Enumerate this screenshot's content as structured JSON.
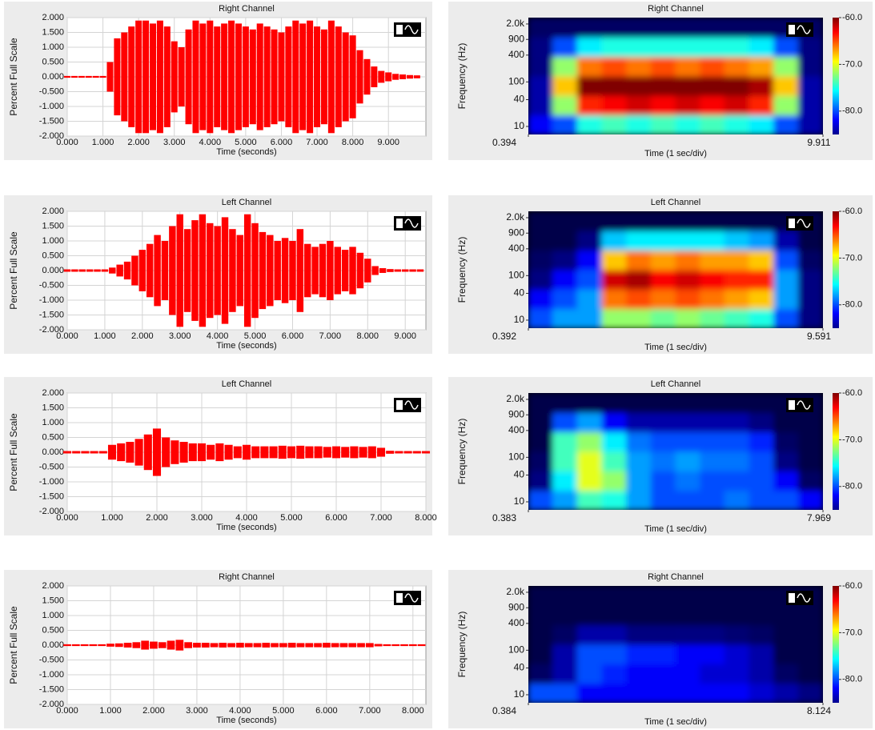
{
  "chart_data": [
    {
      "type": "waveform",
      "title": "Right Channel",
      "ylabel": "Percent Full Scale",
      "xlabel": "Time (seconds)",
      "color": "#ff0000",
      "grid": true,
      "xlim": [
        0,
        10.05
      ],
      "ylim": [
        -2,
        2
      ],
      "xticks": [
        {
          "value": 0,
          "label": "0.000"
        },
        {
          "value": 1,
          "label": "1.000"
        },
        {
          "value": 2,
          "label": "2.000"
        },
        {
          "value": 3,
          "label": "3.000"
        },
        {
          "value": 4,
          "label": "4.000"
        },
        {
          "value": 5,
          "label": "5.000"
        },
        {
          "value": 6,
          "label": "6.000"
        },
        {
          "value": 7,
          "label": "7.000"
        },
        {
          "value": 8,
          "label": "8.000"
        },
        {
          "value": 9,
          "label": "9.000"
        }
      ],
      "yticks": [
        {
          "value": -2,
          "label": "-2.000"
        },
        {
          "value": -1.5,
          "label": "-1.500"
        },
        {
          "value": -1,
          "label": "-1.000"
        },
        {
          "value": -0.5,
          "label": "-0.500"
        },
        {
          "value": 0,
          "label": "0.000"
        },
        {
          "value": 0.5,
          "label": "0.500"
        },
        {
          "value": 1,
          "label": "1.000"
        },
        {
          "value": 1.5,
          "label": "1.500"
        },
        {
          "value": 2,
          "label": "2.000"
        }
      ],
      "x": [
        0,
        0.2,
        0.4,
        0.6,
        0.8,
        1.0,
        1.2,
        1.4,
        1.6,
        1.8,
        2.0,
        2.2,
        2.4,
        2.6,
        2.8,
        3.0,
        3.2,
        3.4,
        3.6,
        3.8,
        4.0,
        4.2,
        4.4,
        4.6,
        4.8,
        5.0,
        5.2,
        5.4,
        5.6,
        5.8,
        6.0,
        6.2,
        6.4,
        6.6,
        6.8,
        7.0,
        7.2,
        7.4,
        7.6,
        7.8,
        8.0,
        8.2,
        8.4,
        8.6,
        8.8,
        9.0,
        9.2,
        9.4,
        9.6,
        9.8
      ],
      "values": [
        0.03,
        0.03,
        0.03,
        0.03,
        0.03,
        0.03,
        0.5,
        1.3,
        1.5,
        1.7,
        1.9,
        1.9,
        1.8,
        1.9,
        1.7,
        1.2,
        1.0,
        1.6,
        1.9,
        1.8,
        1.9,
        1.7,
        1.8,
        1.9,
        1.8,
        1.7,
        1.6,
        1.8,
        1.7,
        1.6,
        1.5,
        1.7,
        1.9,
        1.8,
        1.9,
        1.7,
        1.6,
        1.9,
        1.7,
        1.5,
        1.4,
        0.9,
        0.6,
        0.35,
        0.2,
        0.15,
        0.1,
        0.08,
        0.06,
        0.05
      ]
    },
    {
      "type": "spectrogram",
      "title": "Right Channel",
      "ylabel": "Frequency (Hz)",
      "xlabel": "Time (1 sec/div)",
      "colormap": "jet",
      "log_y": true,
      "xlim": [
        0.394,
        9.911
      ],
      "xticks": [
        0.394,
        9.911
      ],
      "ylim": [
        6.6,
        2780
      ],
      "yticks": [
        10,
        40,
        100,
        400,
        900,
        {
          "value": 2000,
          "label": "2.0k"
        }
      ],
      "zlim": [
        -85,
        -60
      ],
      "zticks": [
        {
          "value": -60,
          "label": "-60.0"
        },
        {
          "value": -70,
          "label": "-70.0"
        },
        {
          "value": -80,
          "label": "-80.0"
        }
      ],
      "values": [
        [
          -82,
          -80,
          -75,
          -74,
          -75,
          -74,
          -75,
          -74,
          -75,
          -76,
          -80,
          -84
        ],
        [
          -84,
          -72,
          -64,
          -63,
          -62,
          -63,
          -62,
          -63,
          -62,
          -64,
          -72,
          -84
        ],
        [
          -84,
          -68,
          -60,
          -60,
          -60,
          -60,
          -60,
          -60,
          -60,
          -61,
          -68,
          -84
        ],
        [
          -85,
          -72,
          -66,
          -65,
          -66,
          -65,
          -66,
          -65,
          -66,
          -67,
          -72,
          -85
        ],
        [
          -86,
          -80,
          -76,
          -75,
          -75,
          -75,
          -75,
          -75,
          -75,
          -76,
          -80,
          -86
        ],
        [
          -88,
          -88,
          -88,
          -88,
          -88,
          -88,
          -88,
          -88,
          -88,
          -88,
          -88,
          -88
        ]
      ]
    },
    {
      "type": "waveform",
      "title": "Left Channel",
      "ylabel": "Percent Full Scale",
      "xlabel": "Time (seconds)",
      "color": "#ff0000",
      "grid": true,
      "xlim": [
        0,
        9.55
      ],
      "ylim": [
        -2,
        2
      ],
      "xticks": [
        {
          "value": 0,
          "label": "0.000"
        },
        {
          "value": 1,
          "label": "1.000"
        },
        {
          "value": 2,
          "label": "2.000"
        },
        {
          "value": 3,
          "label": "3.000"
        },
        {
          "value": 4,
          "label": "4.000"
        },
        {
          "value": 5,
          "label": "5.000"
        },
        {
          "value": 6,
          "label": "6.000"
        },
        {
          "value": 7,
          "label": "7.000"
        },
        {
          "value": 8,
          "label": "8.000"
        },
        {
          "value": 9,
          "label": "9.000"
        }
      ],
      "yticks": [
        {
          "value": -2,
          "label": "-2.000"
        },
        {
          "value": -1.5,
          "label": "-1.500"
        },
        {
          "value": -1,
          "label": "-1.000"
        },
        {
          "value": -0.5,
          "label": "-0.500"
        },
        {
          "value": 0,
          "label": "0.000"
        },
        {
          "value": 0.5,
          "label": "0.500"
        },
        {
          "value": 1,
          "label": "1.000"
        },
        {
          "value": 1.5,
          "label": "1.500"
        },
        {
          "value": 2,
          "label": "2.000"
        }
      ],
      "x": [
        0,
        0.2,
        0.4,
        0.6,
        0.8,
        1.0,
        1.2,
        1.4,
        1.6,
        1.8,
        2.0,
        2.2,
        2.4,
        2.6,
        2.8,
        3.0,
        3.2,
        3.4,
        3.6,
        3.8,
        4.0,
        4.2,
        4.4,
        4.6,
        4.8,
        5.0,
        5.2,
        5.4,
        5.6,
        5.8,
        6.0,
        6.2,
        6.4,
        6.6,
        6.8,
        7.0,
        7.2,
        7.4,
        7.6,
        7.8,
        8.0,
        8.2,
        8.4,
        8.6,
        8.8,
        9.0,
        9.2,
        9.4
      ],
      "values": [
        0.04,
        0.04,
        0.04,
        0.04,
        0.04,
        0.04,
        0.1,
        0.2,
        0.3,
        0.5,
        0.7,
        0.9,
        1.2,
        1.0,
        1.5,
        1.9,
        1.4,
        1.7,
        1.9,
        1.6,
        1.5,
        1.8,
        1.4,
        1.2,
        1.9,
        1.6,
        1.3,
        1.2,
        1.0,
        1.1,
        1.0,
        1.4,
        0.9,
        0.8,
        0.9,
        1.0,
        0.8,
        0.7,
        0.8,
        0.6,
        0.4,
        0.15,
        0.08,
        0.05,
        0.04,
        0.04,
        0.04,
        0.04
      ]
    },
    {
      "type": "spectrogram",
      "title": "Left Channel",
      "ylabel": "Frequency (Hz)",
      "xlabel": "Time (1 sec/div)",
      "colormap": "jet",
      "log_y": true,
      "xlim": [
        0.392,
        9.591
      ],
      "xticks": [
        0.392,
        9.591
      ],
      "ylim": [
        6.6,
        2780
      ],
      "yticks": [
        10,
        40,
        100,
        400,
        900,
        {
          "value": 2000,
          "label": "2.0k"
        }
      ],
      "zlim": [
        -85,
        -60
      ],
      "zticks": [
        {
          "value": -60,
          "label": "-60.0"
        },
        {
          "value": -70,
          "label": "-70.0"
        },
        {
          "value": -80,
          "label": "-80.0"
        }
      ],
      "values": [
        [
          -80,
          -78,
          -78,
          -72,
          -72,
          -73,
          -72,
          -73,
          -74,
          -75,
          -80,
          -86
        ],
        [
          -82,
          -80,
          -78,
          -66,
          -65,
          -66,
          -65,
          -66,
          -67,
          -68,
          -78,
          -86
        ],
        [
          -86,
          -82,
          -80,
          -62,
          -61,
          -63,
          -62,
          -63,
          -64,
          -64,
          -78,
          -86
        ],
        [
          -88,
          -86,
          -82,
          -68,
          -66,
          -67,
          -66,
          -67,
          -67,
          -68,
          -80,
          -88
        ],
        [
          -90,
          -90,
          -86,
          -77,
          -76,
          -76,
          -76,
          -76,
          -77,
          -78,
          -84,
          -90
        ],
        [
          -90,
          -90,
          -90,
          -90,
          -90,
          -90,
          -90,
          -90,
          -90,
          -90,
          -90,
          -90
        ]
      ]
    },
    {
      "type": "waveform",
      "title": "Left Channel",
      "ylabel": "Percent Full Scale",
      "xlabel": "Time (seconds)",
      "color": "#ff0000",
      "grid": true,
      "xlim": [
        0,
        8
      ],
      "ylim": [
        -2,
        2
      ],
      "xticks": [
        {
          "value": 0,
          "label": "0.000"
        },
        {
          "value": 1,
          "label": "1.000"
        },
        {
          "value": 2,
          "label": "2.000"
        },
        {
          "value": 3,
          "label": "3.000"
        },
        {
          "value": 4,
          "label": "4.000"
        },
        {
          "value": 5,
          "label": "5.000"
        },
        {
          "value": 6,
          "label": "6.000"
        },
        {
          "value": 7,
          "label": "7.000"
        },
        {
          "value": 8,
          "label": "8.000"
        }
      ],
      "yticks": [
        {
          "value": -2,
          "label": "-2.000"
        },
        {
          "value": -1.5,
          "label": "-1.500"
        },
        {
          "value": -1,
          "label": "-1.000"
        },
        {
          "value": -0.5,
          "label": "-0.500"
        },
        {
          "value": 0,
          "label": "0.000"
        },
        {
          "value": 0.5,
          "label": "0.500"
        },
        {
          "value": 1,
          "label": "1.000"
        },
        {
          "value": 1.5,
          "label": "1.500"
        },
        {
          "value": 2,
          "label": "2.000"
        }
      ],
      "x": [
        0,
        0.2,
        0.4,
        0.6,
        0.8,
        1.0,
        1.2,
        1.4,
        1.6,
        1.8,
        2.0,
        2.2,
        2.4,
        2.6,
        2.8,
        3.0,
        3.2,
        3.4,
        3.6,
        3.8,
        4.0,
        4.2,
        4.4,
        4.6,
        4.8,
        5.0,
        5.2,
        5.4,
        5.6,
        5.8,
        6.0,
        6.2,
        6.4,
        6.6,
        6.8,
        7.0,
        7.2,
        7.4,
        7.6,
        7.8,
        8.0
      ],
      "values": [
        0.04,
        0.04,
        0.04,
        0.04,
        0.04,
        0.25,
        0.3,
        0.35,
        0.45,
        0.6,
        0.8,
        0.5,
        0.4,
        0.35,
        0.3,
        0.3,
        0.25,
        0.3,
        0.25,
        0.2,
        0.25,
        0.2,
        0.2,
        0.2,
        0.22,
        0.2,
        0.22,
        0.2,
        0.2,
        0.18,
        0.2,
        0.18,
        0.2,
        0.18,
        0.2,
        0.15,
        0.05,
        0.04,
        0.04,
        0.04,
        0.04
      ]
    },
    {
      "type": "spectrogram",
      "title": "Left Channel",
      "ylabel": "Frequency (Hz)",
      "xlabel": "Time (1 sec/div)",
      "colormap": "jet",
      "log_y": true,
      "xlim": [
        0.383,
        7.969
      ],
      "xticks": [
        0.383,
        7.969
      ],
      "ylim": [
        6.6,
        2780
      ],
      "yticks": [
        10,
        40,
        100,
        400,
        900,
        {
          "value": 2000,
          "label": "2.0k"
        }
      ],
      "zlim": [
        -85,
        -60
      ],
      "zticks": [
        {
          "value": -60,
          "label": "-60.0"
        },
        {
          "value": -70,
          "label": "-70.0"
        },
        {
          "value": -80,
          "label": "-80.0"
        }
      ],
      "values": [
        [
          -80,
          -78,
          -74,
          -75,
          -78,
          -80,
          -80,
          -80,
          -79,
          -80,
          -80,
          -82
        ],
        [
          -86,
          -76,
          -70,
          -72,
          -78,
          -80,
          -79,
          -80,
          -80,
          -80,
          -82,
          -88
        ],
        [
          -88,
          -74,
          -70,
          -74,
          -78,
          -79,
          -78,
          -79,
          -79,
          -80,
          -86,
          -90
        ],
        [
          -90,
          -74,
          -72,
          -76,
          -79,
          -80,
          -80,
          -80,
          -80,
          -81,
          -88,
          -90
        ],
        [
          -90,
          -80,
          -78,
          -82,
          -84,
          -84,
          -84,
          -84,
          -84,
          -85,
          -90,
          -90
        ],
        [
          -90,
          -90,
          -90,
          -90,
          -90,
          -90,
          -90,
          -90,
          -90,
          -90,
          -90,
          -90
        ]
      ]
    },
    {
      "type": "waveform",
      "title": "Right Channel",
      "ylabel": "Percent Full Scale",
      "xlabel": "Time (seconds)",
      "color": "#ff0000",
      "grid": true,
      "xlim": [
        0,
        8.3
      ],
      "ylim": [
        -2,
        2
      ],
      "xticks": [
        {
          "value": 0,
          "label": "0.000"
        },
        {
          "value": 1,
          "label": "1.000"
        },
        {
          "value": 2,
          "label": "2.000"
        },
        {
          "value": 3,
          "label": "3.000"
        },
        {
          "value": 4,
          "label": "4.000"
        },
        {
          "value": 5,
          "label": "5.000"
        },
        {
          "value": 6,
          "label": "6.000"
        },
        {
          "value": 7,
          "label": "7.000"
        },
        {
          "value": 8,
          "label": "8.000"
        }
      ],
      "yticks": [
        {
          "value": -2,
          "label": "-2.000"
        },
        {
          "value": -1.5,
          "label": "-1.500"
        },
        {
          "value": -1,
          "label": "-1.000"
        },
        {
          "value": -0.5,
          "label": "-0.500"
        },
        {
          "value": 0,
          "label": "0.000"
        },
        {
          "value": 0.5,
          "label": "0.500"
        },
        {
          "value": 1,
          "label": "1.000"
        },
        {
          "value": 1.5,
          "label": "1.500"
        },
        {
          "value": 2,
          "label": "2.000"
        }
      ],
      "x": [
        0,
        0.2,
        0.4,
        0.6,
        0.8,
        1.0,
        1.2,
        1.4,
        1.6,
        1.8,
        2.0,
        2.2,
        2.4,
        2.6,
        2.8,
        3.0,
        3.2,
        3.4,
        3.6,
        3.8,
        4.0,
        4.2,
        4.4,
        4.6,
        4.8,
        5.0,
        5.2,
        5.4,
        5.6,
        5.8,
        6.0,
        6.2,
        6.4,
        6.6,
        6.8,
        7.0,
        7.2,
        7.4,
        7.6,
        7.8,
        8.0,
        8.2
      ],
      "values": [
        0.03,
        0.03,
        0.03,
        0.03,
        0.03,
        0.05,
        0.06,
        0.08,
        0.1,
        0.15,
        0.12,
        0.1,
        0.15,
        0.18,
        0.1,
        0.08,
        0.08,
        0.07,
        0.08,
        0.07,
        0.08,
        0.07,
        0.07,
        0.08,
        0.07,
        0.07,
        0.08,
        0.07,
        0.07,
        0.07,
        0.08,
        0.07,
        0.07,
        0.07,
        0.07,
        0.07,
        0.04,
        0.03,
        0.03,
        0.03,
        0.03,
        0.03
      ]
    },
    {
      "type": "spectrogram",
      "title": "Right Channel",
      "ylabel": "Frequency (Hz)",
      "xlabel": "Time (1 sec/div)",
      "colormap": "jet",
      "log_y": true,
      "xlim": [
        0.384,
        8.124
      ],
      "xticks": [
        0.384,
        8.124
      ],
      "ylim": [
        6.6,
        2780
      ],
      "yticks": [
        10,
        40,
        100,
        400,
        900,
        {
          "value": 2000,
          "label": "2.0k"
        }
      ],
      "zlim": [
        -85,
        -60
      ],
      "zticks": [
        {
          "value": -60,
          "label": "-60.0"
        },
        {
          "value": -70,
          "label": "-70.0"
        },
        {
          "value": -80,
          "label": "-80.0"
        }
      ],
      "values": [
        [
          -80,
          -80,
          -82,
          -82,
          -82,
          -82,
          -82,
          -82,
          -82,
          -83,
          -84,
          -86
        ],
        [
          -88,
          -84,
          -80,
          -81,
          -82,
          -82,
          -82,
          -83,
          -83,
          -84,
          -88,
          -90
        ],
        [
          -90,
          -84,
          -80,
          -80,
          -81,
          -81,
          -82,
          -82,
          -83,
          -84,
          -90,
          -90
        ],
        [
          -90,
          -88,
          -84,
          -84,
          -85,
          -85,
          -86,
          -86,
          -87,
          -88,
          -90,
          -90
        ],
        [
          -90,
          -90,
          -90,
          -90,
          -90,
          -90,
          -90,
          -90,
          -90,
          -90,
          -90,
          -90
        ],
        [
          -90,
          -90,
          -90,
          -90,
          -90,
          -90,
          -90,
          -90,
          -90,
          -90,
          -90,
          -90
        ]
      ]
    }
  ]
}
